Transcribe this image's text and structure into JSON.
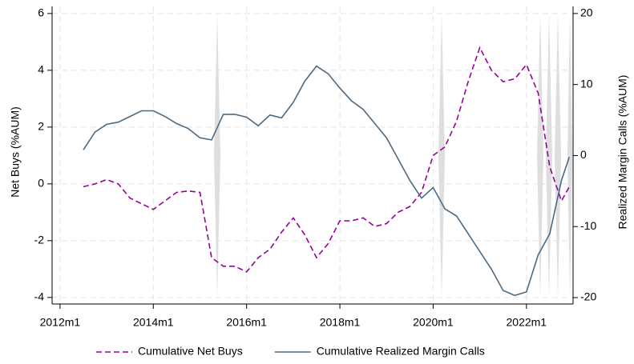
{
  "chart_data": {
    "type": "line",
    "ylabel": "Net Buys (%AUM)",
    "y2label": "Realized Margin Calls (%AUM)",
    "xlim": [
      2011.83,
      2023.0
    ],
    "xticks": [
      {
        "value": 2012,
        "label": "2012m1"
      },
      {
        "value": 2014,
        "label": "2014m1"
      },
      {
        "value": 2016,
        "label": "2016m1"
      },
      {
        "value": 2018,
        "label": "2018m1"
      },
      {
        "value": 2020,
        "label": "2020m1"
      },
      {
        "value": 2022,
        "label": "2022m1"
      }
    ],
    "ylim": [
      -4.23,
      6.25
    ],
    "yticks": [
      -4,
      -2,
      0,
      2,
      4,
      6
    ],
    "y2lim": [
      -20.9,
      21.0
    ],
    "y2ticks": [
      -20,
      -10,
      0,
      10,
      20
    ],
    "grid": true,
    "legend": "bottom",
    "x": [
      2012.5,
      2012.75,
      2013.0,
      2013.25,
      2013.5,
      2013.75,
      2014.0,
      2014.25,
      2014.5,
      2014.75,
      2015.0,
      2015.25,
      2015.5,
      2015.75,
      2016.0,
      2016.25,
      2016.5,
      2016.75,
      2017.0,
      2017.25,
      2017.5,
      2017.75,
      2018.0,
      2018.25,
      2018.5,
      2018.75,
      2019.0,
      2019.25,
      2019.5,
      2019.75,
      2020.0,
      2020.25,
      2020.5,
      2020.75,
      2021.0,
      2021.25,
      2021.5,
      2021.75,
      2022.0,
      2022.25,
      2022.5,
      2022.75,
      2022.92
    ],
    "series": [
      {
        "name": "Cumulative Net Buys",
        "color": "#990099",
        "dash": true,
        "values": [
          -0.1,
          0.0,
          0.15,
          0.0,
          -0.5,
          -0.7,
          -0.9,
          -0.6,
          -0.3,
          -0.25,
          -0.3,
          -2.6,
          -2.9,
          -2.9,
          -3.1,
          -2.6,
          -2.3,
          -1.7,
          -1.2,
          -1.8,
          -2.6,
          -2.1,
          -1.3,
          -1.3,
          -1.2,
          -1.5,
          -1.4,
          -1.0,
          -0.8,
          -0.3,
          1.0,
          1.3,
          2.2,
          3.6,
          4.8,
          4.0,
          3.6,
          3.7,
          4.2,
          3.2,
          0.6,
          -0.6,
          -0.1
        ]
      },
      {
        "name": "Cumulative Realized Margin Calls",
        "color": "#4d6a80",
        "axis": "y2",
        "values": [
          0.8,
          3.3,
          4.4,
          4.7,
          5.5,
          6.3,
          6.3,
          5.5,
          4.5,
          3.8,
          2.5,
          2.2,
          5.8,
          5.8,
          5.4,
          4.2,
          5.7,
          5.3,
          7.5,
          10.5,
          12.6,
          11.5,
          9.5,
          7.7,
          6.5,
          4.5,
          2.5,
          -0.5,
          -3.5,
          -6.0,
          -4.5,
          -7.5,
          -8.5,
          -11.0,
          -13.5,
          -16.0,
          -19.0,
          -19.7,
          -19.2,
          -14.0,
          -11.0,
          -3.5,
          -0.2
        ]
      }
    ]
  }
}
